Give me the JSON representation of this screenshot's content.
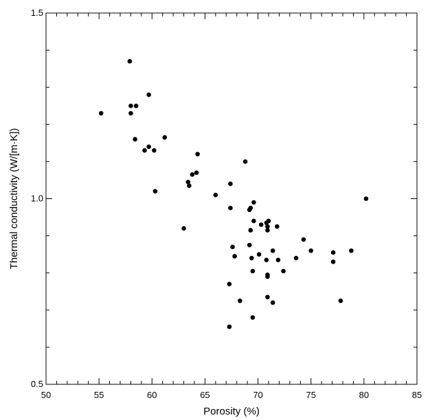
{
  "chart_data": {
    "type": "scatter",
    "title": "",
    "xlabel": "Porosity (%)",
    "ylabel": "Thermal conductivity (W/[m·K])",
    "xlim": [
      50,
      85
    ],
    "ylim": [
      0.5,
      1.5
    ],
    "x_ticks": [
      50,
      55,
      60,
      65,
      70,
      75,
      80,
      85
    ],
    "x_tick_labels": [
      "50",
      "55",
      "60",
      "65",
      "70",
      "75",
      "80",
      "85"
    ],
    "y_ticks": [
      0.5,
      1.0,
      1.5
    ],
    "y_tick_labels": [
      "0.5",
      "1.0",
      "1.5"
    ],
    "grid": false,
    "marker_color": "#000000",
    "points": [
      [
        55.2,
        1.23
      ],
      [
        57.9,
        1.37
      ],
      [
        58.0,
        1.25
      ],
      [
        58.0,
        1.23
      ],
      [
        58.5,
        1.25
      ],
      [
        59.7,
        1.28
      ],
      [
        58.4,
        1.16
      ],
      [
        59.3,
        1.13
      ],
      [
        59.7,
        1.14
      ],
      [
        60.2,
        1.13
      ],
      [
        61.2,
        1.165
      ],
      [
        60.3,
        1.02
      ],
      [
        63.0,
        0.92
      ],
      [
        63.4,
        1.045
      ],
      [
        63.5,
        1.035
      ],
      [
        63.8,
        1.065
      ],
      [
        64.2,
        1.07
      ],
      [
        64.3,
        1.12
      ],
      [
        66.0,
        1.01
      ],
      [
        67.4,
        1.04
      ],
      [
        67.4,
        0.975
      ],
      [
        67.6,
        0.87
      ],
      [
        67.8,
        0.845
      ],
      [
        67.3,
        0.77
      ],
      [
        67.3,
        0.655
      ],
      [
        68.3,
        0.725
      ],
      [
        68.8,
        1.1
      ],
      [
        69.2,
        0.97
      ],
      [
        69.3,
        0.975
      ],
      [
        69.6,
        0.99
      ],
      [
        69.3,
        0.915
      ],
      [
        69.6,
        0.94
      ],
      [
        69.2,
        0.875
      ],
      [
        69.4,
        0.84
      ],
      [
        69.5,
        0.805
      ],
      [
        69.5,
        0.68
      ],
      [
        70.1,
        0.85
      ],
      [
        70.3,
        0.93
      ],
      [
        70.8,
        0.935
      ],
      [
        70.9,
        0.925
      ],
      [
        70.9,
        0.915
      ],
      [
        71.0,
        0.94
      ],
      [
        71.8,
        0.925
      ],
      [
        71.4,
        0.86
      ],
      [
        70.8,
        0.835
      ],
      [
        70.9,
        0.795
      ],
      [
        70.9,
        0.79
      ],
      [
        70.9,
        0.735
      ],
      [
        71.4,
        0.72
      ],
      [
        71.9,
        0.835
      ],
      [
        72.4,
        0.805
      ],
      [
        73.6,
        0.84
      ],
      [
        74.3,
        0.89
      ],
      [
        75.0,
        0.86
      ],
      [
        77.1,
        0.855
      ],
      [
        77.1,
        0.83
      ],
      [
        77.8,
        0.725
      ],
      [
        78.8,
        0.86
      ],
      [
        80.2,
        1.0
      ]
    ]
  }
}
